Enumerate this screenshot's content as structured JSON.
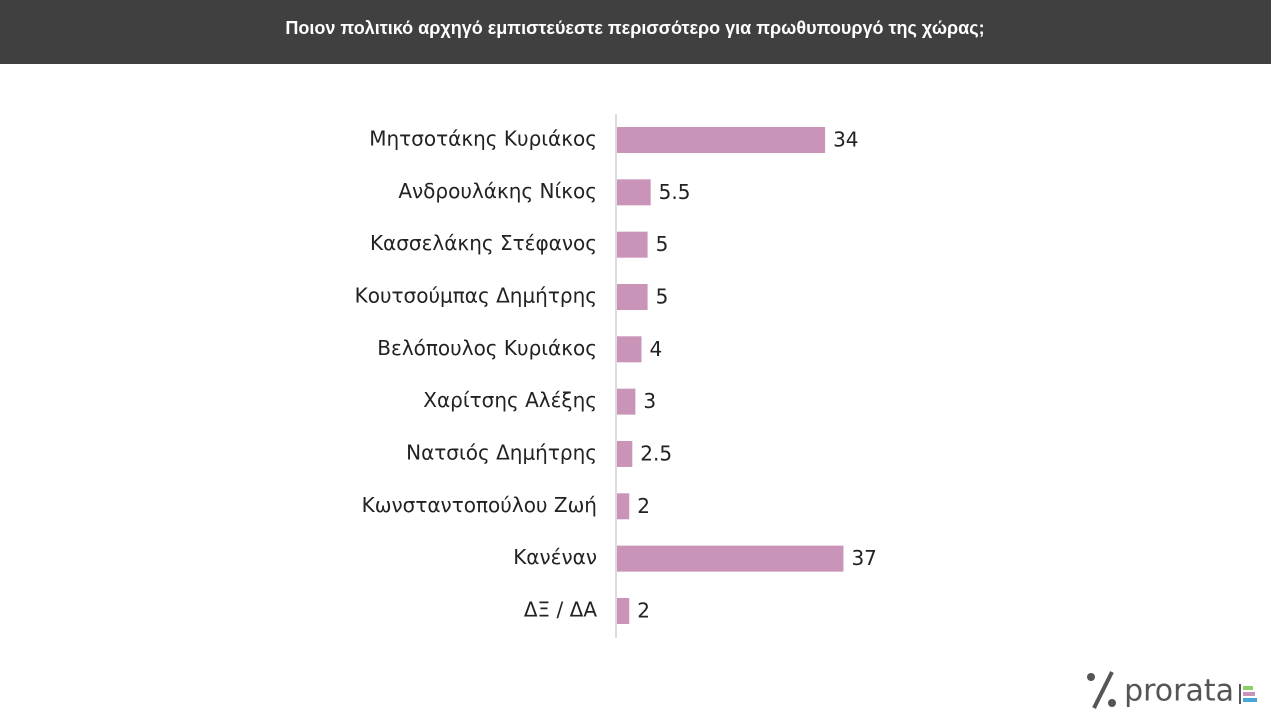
{
  "chart_data": {
    "type": "bar",
    "orientation": "horizontal",
    "title": "Ποιον πολιτικό αρχηγό εμπιστεύεστε περισσότερο για πρωθυπουργό της χώρας;",
    "categories": [
      "Μητσοτάκης Κυριάκος",
      "Ανδρουλάκης Νίκος",
      "Κασσελάκης Στέφανος",
      "Κουτσούμπας Δημήτρης",
      "Βελόπουλος Κυριάκος",
      "Χαρίτσης Αλέξης",
      "Νατσιός Δημήτρης",
      "Κωνσταντοπούλου Ζωή",
      "Κανέναν",
      "ΔΞ / ΔΑ"
    ],
    "values": [
      34,
      5.5,
      5,
      5,
      4,
      3,
      2.5,
      2,
      37,
      2
    ],
    "color": "#c994b8"
  },
  "logo": "prorata"
}
